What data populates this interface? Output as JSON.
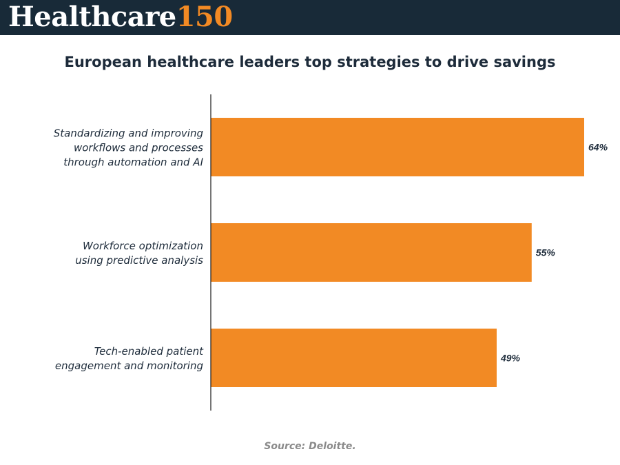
{
  "header": {
    "logo_word": "Healthcare",
    "logo_number": "150"
  },
  "colors": {
    "banner": "#182a38",
    "accent": "#f28a24",
    "bar": "#f28a24",
    "title": "#1d2b3a",
    "source": "#8a8a8a"
  },
  "chart_data": {
    "type": "bar",
    "orientation": "horizontal",
    "title": "European healthcare leaders top strategies to drive savings",
    "categories": [
      [
        "Standardizing and improving",
        "workflows and processes",
        "through automation and AI"
      ],
      [
        "Workforce optimization",
        "using predictive analysis"
      ],
      [
        "Tech-enabled patient",
        "engagement and monitoring"
      ]
    ],
    "values": [
      64,
      55,
      49
    ],
    "value_labels": [
      "64%",
      "55%",
      "49%"
    ],
    "unit": "%",
    "xlim": [
      0,
      100
    ],
    "grid": false,
    "legend": "none"
  },
  "footer": {
    "source": "Source: Deloitte."
  }
}
